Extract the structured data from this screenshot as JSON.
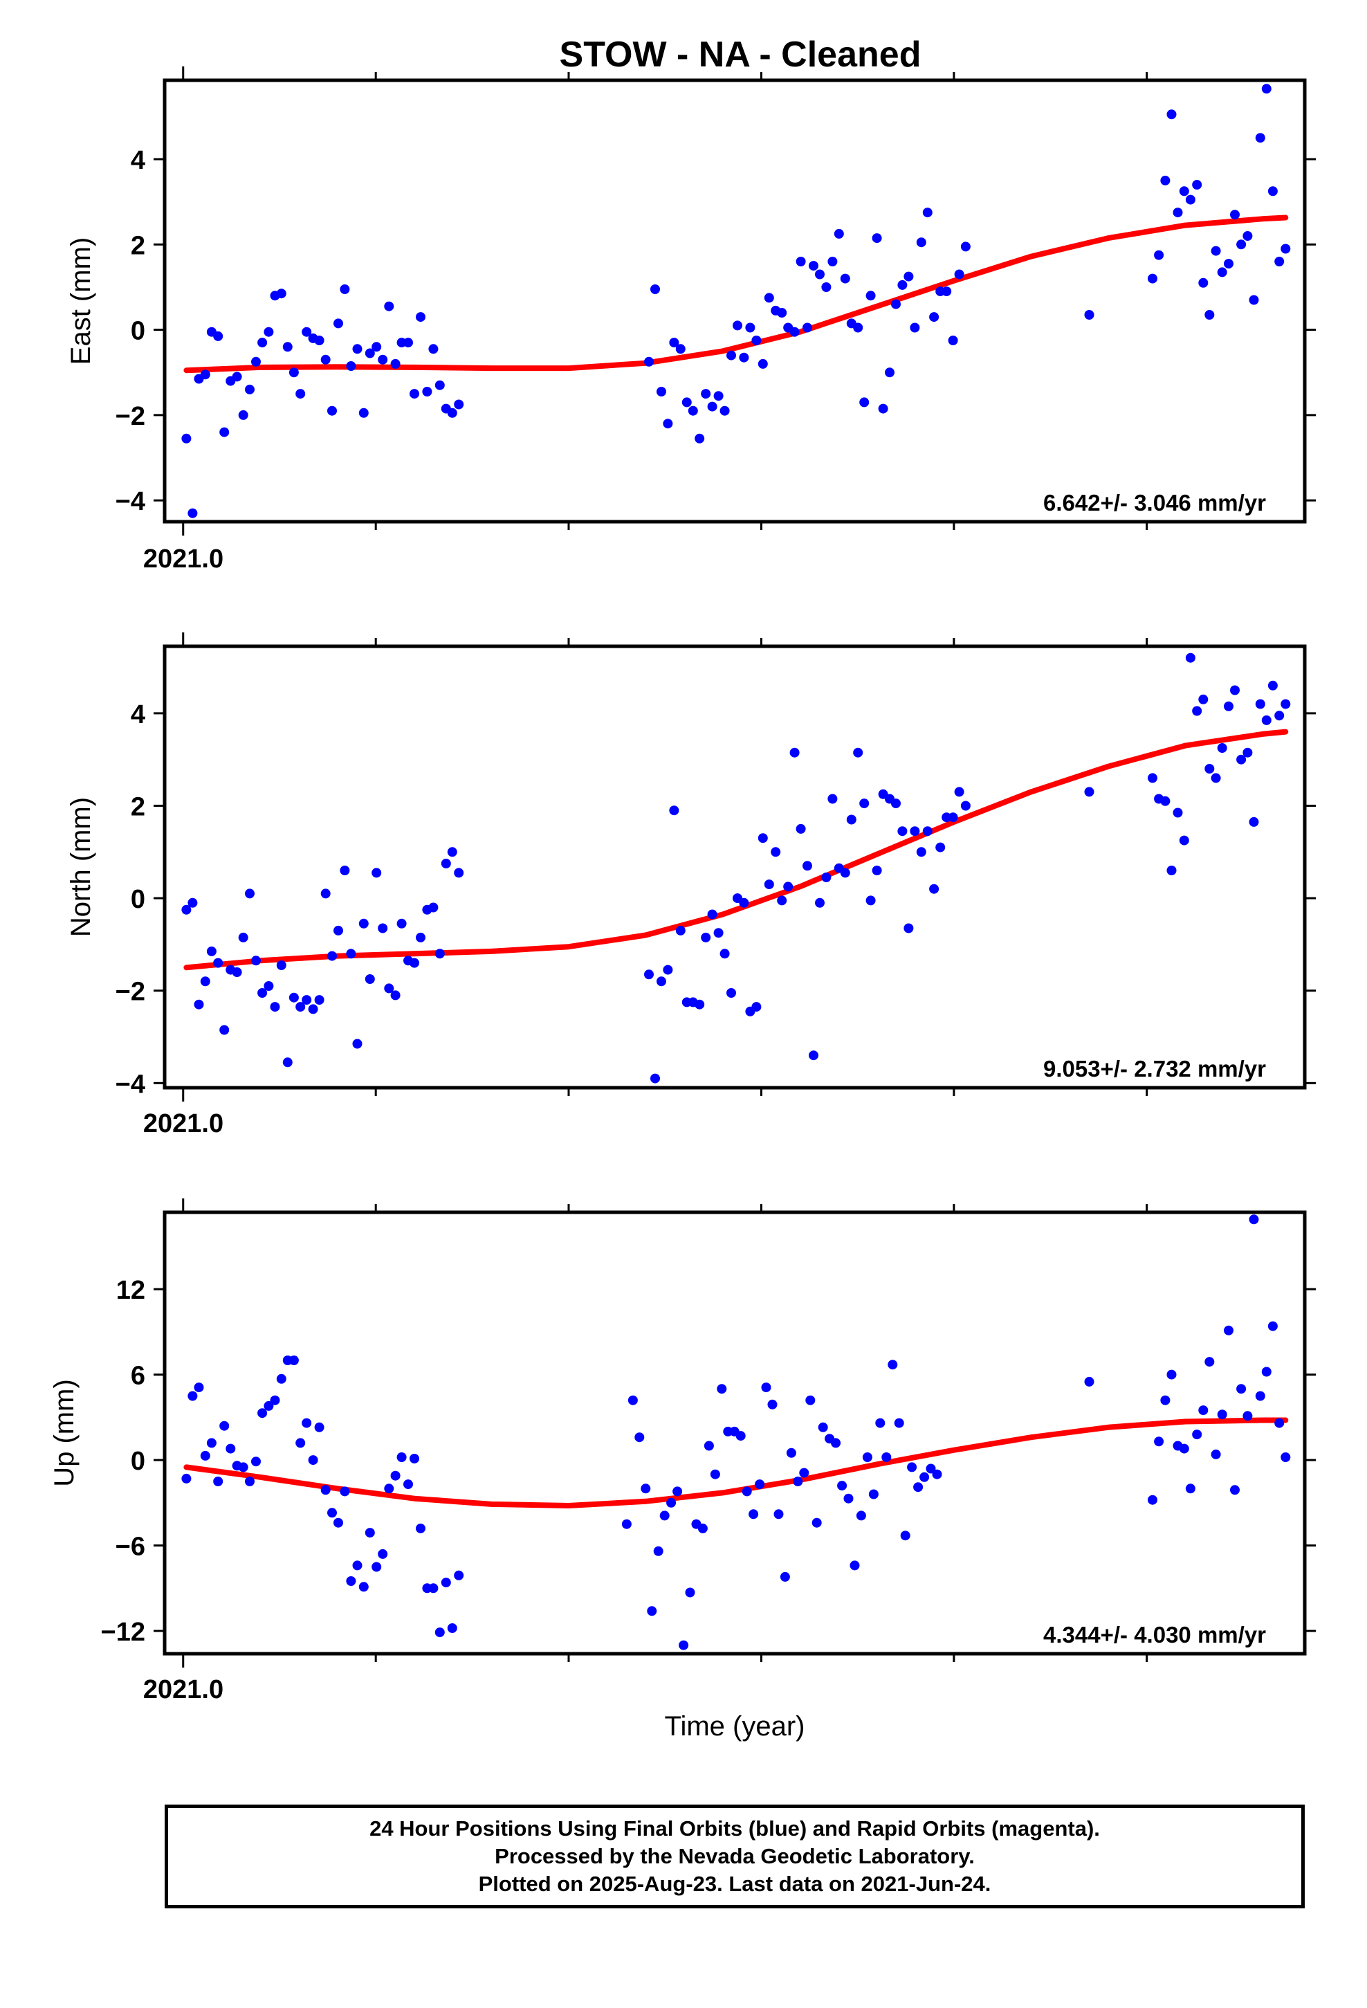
{
  "title": "STOW  - NA - Cleaned",
  "x_axis_label": "Time (year)",
  "x_tick_label": "2021.0",
  "caption": {
    "line1": "24 Hour Positions Using Final Orbits (blue) and Rapid Orbits (magenta).",
    "line2": "Processed by the Nevada Geodetic Laboratory.",
    "line3": "Plotted on 2025-Aug-23. Last data on 2021-Jun-24."
  },
  "colors": {
    "points": "#0000ff",
    "fit": "#ff0000",
    "frame": "#000000"
  },
  "chart_data": [
    {
      "type": "scatter",
      "ylabel": "East (mm)",
      "rate_label": "6.642+/- 3.046 mm/yr",
      "xlim": [
        2020.992,
        2021.485
      ],
      "ylim": [
        -4.5,
        5.85
      ],
      "yticks": [
        -4,
        -2,
        0,
        2,
        4
      ],
      "ytick_labels": [
        "−4",
        "−2",
        "0",
        "2",
        "4"
      ],
      "x": [
        2021.0014,
        2021.0041,
        2021.0068,
        2021.0096,
        2021.0123,
        2021.0151,
        2021.0178,
        2021.0205,
        2021.0233,
        2021.026,
        2021.0288,
        2021.0315,
        2021.0342,
        2021.037,
        2021.0397,
        2021.0425,
        2021.0452,
        2021.0479,
        2021.0507,
        2021.0534,
        2021.0562,
        2021.0589,
        2021.0616,
        2021.0644,
        2021.0671,
        2021.0699,
        2021.0726,
        2021.0753,
        2021.0781,
        2021.0808,
        2021.0836,
        2021.0863,
        2021.089,
        2021.0918,
        2021.0945,
        2021.0973,
        2021.1,
        2021.1027,
        2021.1055,
        2021.1082,
        2021.111,
        2021.1137,
        2021.1164,
        2021.1192,
        2021.2014,
        2021.2041,
        2021.2068,
        2021.2096,
        2021.2123,
        2021.2151,
        2021.2178,
        2021.2205,
        2021.2233,
        2021.226,
        2021.2288,
        2021.2315,
        2021.2342,
        2021.237,
        2021.2397,
        2021.2425,
        2021.2452,
        2021.2479,
        2021.2507,
        2021.2534,
        2021.2562,
        2021.2589,
        2021.2616,
        2021.2644,
        2021.2671,
        2021.2699,
        2021.2726,
        2021.2753,
        2021.2781,
        2021.2808,
        2021.2836,
        2021.2863,
        2021.289,
        2021.2918,
        2021.2945,
        2021.2973,
        2021.3,
        2021.3027,
        2021.3055,
        2021.3082,
        2021.311,
        2021.3137,
        2021.3164,
        2021.3192,
        2021.3219,
        2021.3247,
        2021.3274,
        2021.3301,
        2021.3329,
        2021.3356,
        2021.3384,
        2021.3918,
        2021.4192,
        2021.4219,
        2021.4247,
        2021.4274,
        2021.4301,
        2021.4329,
        2021.4356,
        2021.4384,
        2021.4411,
        2021.4438,
        2021.4466,
        2021.4493,
        2021.4521,
        2021.4548,
        2021.4575,
        2021.4603,
        2021.463,
        2021.4658,
        2021.4685,
        2021.4712,
        2021.474,
        2021.4767
      ],
      "y": [
        -2.55,
        -4.3,
        -1.15,
        -1.05,
        -0.05,
        -0.15,
        -2.4,
        -1.2,
        -1.1,
        -2.0,
        -1.4,
        -0.75,
        -0.3,
        -0.05,
        0.8,
        0.85,
        -0.4,
        -1.0,
        -1.5,
        -0.05,
        -0.2,
        -0.25,
        -0.7,
        -1.9,
        0.15,
        0.95,
        -0.85,
        -0.45,
        -1.95,
        -0.55,
        -0.4,
        -0.7,
        0.55,
        -0.8,
        -0.3,
        -0.3,
        -1.5,
        0.3,
        -1.45,
        -0.45,
        -1.3,
        -1.85,
        -1.95,
        -1.75,
        -0.75,
        0.95,
        -1.45,
        -2.2,
        -0.3,
        -0.45,
        -1.7,
        -1.9,
        -2.55,
        -1.5,
        -1.8,
        -1.55,
        -1.9,
        -0.6,
        0.1,
        -0.65,
        0.05,
        -0.25,
        -0.8,
        0.75,
        0.45,
        0.4,
        0.05,
        -0.05,
        1.6,
        0.05,
        1.5,
        1.3,
        1.0,
        1.6,
        2.25,
        1.2,
        0.15,
        0.05,
        -1.7,
        0.8,
        2.15,
        -1.85,
        -1.0,
        0.6,
        1.05,
        1.25,
        0.05,
        2.05,
        2.75,
        0.3,
        0.9,
        0.9,
        -0.25,
        1.3,
        1.95,
        0.35,
        1.2,
        1.75,
        3.5,
        5.05,
        2.75,
        3.25,
        3.05,
        3.4,
        1.1,
        0.35,
        1.85,
        1.35,
        1.55,
        2.7,
        2.0,
        2.2,
        0.7,
        4.5,
        5.65,
        3.25,
        1.6,
        1.9
      ],
      "fit_x": [
        2021.0014,
        2021.0333,
        2021.0667,
        2021.1,
        2021.1333,
        2021.1667,
        2021.2,
        2021.2333,
        2021.2667,
        2021.3,
        2021.3333,
        2021.3667,
        2021.4,
        2021.4333,
        2021.4667,
        2021.4767
      ],
      "fit_y": [
        -0.95,
        -0.88,
        -0.87,
        -0.88,
        -0.9,
        -0.9,
        -0.78,
        -0.5,
        -0.05,
        0.55,
        1.15,
        1.72,
        2.15,
        2.45,
        2.6,
        2.63
      ]
    },
    {
      "type": "scatter",
      "ylabel": "North (mm)",
      "rate_label": "9.053+/- 2.732 mm/yr",
      "xlim": [
        2020.992,
        2021.485
      ],
      "ylim": [
        -4.1,
        5.45
      ],
      "yticks": [
        -4,
        -2,
        0,
        2,
        4
      ],
      "ytick_labels": [
        "−4",
        "−2",
        "0",
        "2",
        "4"
      ],
      "x": [
        2021.0014,
        2021.0041,
        2021.0068,
        2021.0096,
        2021.0123,
        2021.0151,
        2021.0178,
        2021.0205,
        2021.0233,
        2021.026,
        2021.0288,
        2021.0315,
        2021.0342,
        2021.037,
        2021.0397,
        2021.0425,
        2021.0452,
        2021.0479,
        2021.0507,
        2021.0534,
        2021.0562,
        2021.0589,
        2021.0616,
        2021.0644,
        2021.0671,
        2021.0699,
        2021.0726,
        2021.0753,
        2021.0781,
        2021.0808,
        2021.0836,
        2021.0863,
        2021.089,
        2021.0918,
        2021.0945,
        2021.0973,
        2021.1,
        2021.1027,
        2021.1055,
        2021.1082,
        2021.111,
        2021.1137,
        2021.1164,
        2021.1192,
        2021.2014,
        2021.2041,
        2021.2068,
        2021.2096,
        2021.2123,
        2021.2151,
        2021.2178,
        2021.2205,
        2021.2233,
        2021.226,
        2021.2288,
        2021.2315,
        2021.2342,
        2021.237,
        2021.2397,
        2021.2425,
        2021.2452,
        2021.2479,
        2021.2507,
        2021.2534,
        2021.2562,
        2021.2589,
        2021.2616,
        2021.2644,
        2021.2671,
        2021.2699,
        2021.2726,
        2021.2753,
        2021.2781,
        2021.2808,
        2021.2836,
        2021.2863,
        2021.289,
        2021.2918,
        2021.2945,
        2021.2973,
        2021.3,
        2021.3027,
        2021.3055,
        2021.3082,
        2021.311,
        2021.3137,
        2021.3164,
        2021.3192,
        2021.3219,
        2021.3247,
        2021.3274,
        2021.3301,
        2021.3329,
        2021.3356,
        2021.3384,
        2021.3918,
        2021.4192,
        2021.4219,
        2021.4247,
        2021.4274,
        2021.4301,
        2021.4329,
        2021.4356,
        2021.4384,
        2021.4411,
        2021.4438,
        2021.4466,
        2021.4493,
        2021.4521,
        2021.4548,
        2021.4575,
        2021.4603,
        2021.463,
        2021.4658,
        2021.4685,
        2021.4712,
        2021.474,
        2021.4767
      ],
      "y": [
        -0.25,
        -0.1,
        -2.3,
        -1.8,
        -1.15,
        -1.4,
        -2.85,
        -1.55,
        -1.6,
        -0.85,
        0.1,
        -1.35,
        -2.05,
        -1.9,
        -2.35,
        -1.45,
        -3.55,
        -2.15,
        -2.35,
        -2.2,
        -2.4,
        -2.2,
        0.1,
        -1.25,
        -0.7,
        0.6,
        -1.2,
        -3.15,
        -0.55,
        -1.75,
        0.55,
        -0.65,
        -1.95,
        -2.1,
        -0.55,
        -1.35,
        -1.4,
        -0.85,
        -0.25,
        -0.2,
        -1.2,
        0.75,
        1.0,
        0.55,
        -1.65,
        -3.9,
        -1.8,
        -1.55,
        1.9,
        -0.7,
        -2.25,
        -2.25,
        -2.3,
        -0.85,
        -0.35,
        -0.75,
        -1.2,
        -2.05,
        0.0,
        -0.1,
        -2.45,
        -2.35,
        1.3,
        0.3,
        1.0,
        -0.05,
        0.25,
        3.15,
        1.5,
        0.7,
        -3.4,
        -0.1,
        0.45,
        2.15,
        0.65,
        0.55,
        1.7,
        3.15,
        2.05,
        -0.05,
        0.6,
        2.25,
        2.15,
        2.05,
        1.45,
        -0.65,
        1.45,
        1.0,
        1.45,
        0.2,
        1.1,
        1.75,
        1.75,
        2.3,
        2.0,
        2.3,
        2.6,
        2.15,
        2.1,
        0.6,
        1.85,
        1.25,
        5.2,
        4.05,
        4.3,
        2.8,
        2.6,
        3.25,
        4.15,
        4.5,
        3.0,
        3.15,
        1.65,
        4.2,
        3.85,
        4.6,
        3.95,
        4.2
      ],
      "fit_x": [
        2021.0014,
        2021.0333,
        2021.0667,
        2021.1,
        2021.1333,
        2021.1667,
        2021.2,
        2021.2333,
        2021.2667,
        2021.3,
        2021.3333,
        2021.3667,
        2021.4,
        2021.4333,
        2021.4667,
        2021.4767
      ],
      "fit_y": [
        -1.5,
        -1.35,
        -1.25,
        -1.2,
        -1.15,
        -1.05,
        -0.8,
        -0.35,
        0.25,
        0.95,
        1.65,
        2.3,
        2.85,
        3.3,
        3.55,
        3.6
      ]
    },
    {
      "type": "scatter",
      "ylabel": "Up (mm)",
      "rate_label": "4.344+/- 4.030 mm/yr",
      "xlim": [
        2020.992,
        2021.485
      ],
      "ylim": [
        -13.6,
        17.4
      ],
      "yticks": [
        -12,
        -6,
        0,
        6,
        12
      ],
      "ytick_labels": [
        "−12",
        "−6",
        "0",
        "6",
        "12"
      ],
      "x": [
        2021.0014,
        2021.0041,
        2021.0068,
        2021.0096,
        2021.0123,
        2021.0151,
        2021.0178,
        2021.0205,
        2021.0233,
        2021.026,
        2021.0288,
        2021.0315,
        2021.0342,
        2021.037,
        2021.0397,
        2021.0425,
        2021.0452,
        2021.0479,
        2021.0507,
        2021.0534,
        2021.0562,
        2021.0589,
        2021.0616,
        2021.0644,
        2021.0671,
        2021.0699,
        2021.0726,
        2021.0753,
        2021.0781,
        2021.0808,
        2021.0836,
        2021.0863,
        2021.089,
        2021.0918,
        2021.0945,
        2021.0973,
        2021.1,
        2021.1027,
        2021.1055,
        2021.1082,
        2021.111,
        2021.1137,
        2021.1164,
        2021.1192,
        2021.1918,
        2021.1945,
        2021.1973,
        2021.2,
        2021.2027,
        2021.2055,
        2021.2082,
        2021.211,
        2021.2137,
        2021.2164,
        2021.2192,
        2021.2219,
        2021.2247,
        2021.2274,
        2021.2301,
        2021.2329,
        2021.2356,
        2021.2384,
        2021.2411,
        2021.2438,
        2021.2466,
        2021.2493,
        2021.2521,
        2021.2548,
        2021.2575,
        2021.2603,
        2021.263,
        2021.2658,
        2021.2685,
        2021.2712,
        2021.274,
        2021.2767,
        2021.2795,
        2021.2822,
        2021.2849,
        2021.2877,
        2021.2904,
        2021.2932,
        2021.2959,
        2021.2986,
        2021.3014,
        2021.3041,
        2021.3068,
        2021.3096,
        2021.3123,
        2021.3151,
        2021.3178,
        2021.3205,
        2021.3233,
        2021.326,
        2021.3918,
        2021.4192,
        2021.4219,
        2021.4247,
        2021.4274,
        2021.4301,
        2021.4329,
        2021.4356,
        2021.4384,
        2021.4411,
        2021.4438,
        2021.4466,
        2021.4493,
        2021.4521,
        2021.4548,
        2021.4575,
        2021.4603,
        2021.463,
        2021.4658,
        2021.4685,
        2021.4712,
        2021.474,
        2021.4767
      ],
      "y": [
        -1.3,
        4.5,
        5.1,
        0.3,
        1.2,
        -1.5,
        2.4,
        0.8,
        -0.4,
        -0.5,
        -1.5,
        -0.1,
        3.3,
        3.8,
        4.2,
        5.7,
        7.0,
        7.0,
        1.2,
        2.6,
        0.0,
        2.3,
        -2.1,
        -3.7,
        -4.4,
        -2.2,
        -8.5,
        -7.4,
        -8.9,
        -5.1,
        -7.5,
        -6.6,
        -2.0,
        -1.1,
        0.2,
        -1.7,
        0.1,
        -4.8,
        -9.0,
        -9.0,
        -12.1,
        -8.6,
        -11.8,
        -8.1,
        -4.5,
        4.2,
        1.6,
        -2.0,
        -10.6,
        -6.4,
        -3.9,
        -3.0,
        -2.2,
        -13.0,
        -9.3,
        -4.5,
        -4.8,
        1.0,
        -1.0,
        5.0,
        2.0,
        2.0,
        1.7,
        -2.2,
        -3.8,
        -1.7,
        5.1,
        3.9,
        -3.8,
        -8.2,
        0.5,
        -1.5,
        -0.9,
        4.2,
        -4.4,
        2.3,
        1.5,
        1.2,
        -1.8,
        -2.7,
        -7.4,
        -3.9,
        0.2,
        -2.4,
        2.6,
        0.2,
        6.7,
        2.6,
        -5.3,
        -0.5,
        -1.9,
        -1.2,
        -0.6,
        -1.0,
        5.5,
        -2.8,
        1.3,
        4.2,
        6.0,
        1.0,
        0.8,
        -2.0,
        1.8,
        3.5,
        6.9,
        0.4,
        3.2,
        9.1,
        -2.1,
        5.0,
        3.1,
        16.9,
        4.5,
        6.2,
        9.4,
        2.6,
        0.2
      ],
      "fit_x": [
        2021.0014,
        2021.0333,
        2021.0667,
        2021.1,
        2021.1333,
        2021.1667,
        2021.2,
        2021.2333,
        2021.2667,
        2021.3,
        2021.3333,
        2021.3667,
        2021.4,
        2021.4333,
        2021.4667,
        2021.4767
      ],
      "fit_y": [
        -0.5,
        -1.2,
        -2.0,
        -2.7,
        -3.1,
        -3.2,
        -2.9,
        -2.3,
        -1.4,
        -0.3,
        0.7,
        1.6,
        2.3,
        2.7,
        2.8,
        2.8
      ]
    }
  ]
}
